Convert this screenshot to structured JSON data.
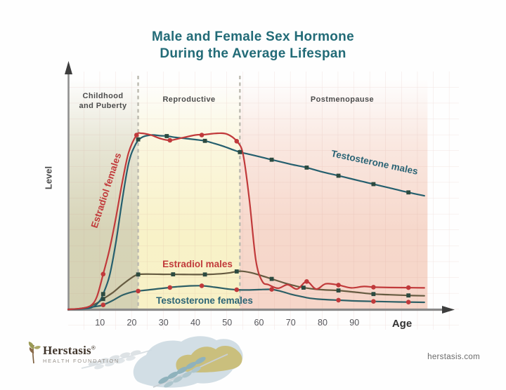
{
  "title": {
    "line1": "Male and Female Sex Hormone",
    "line2": "During the Average Lifespan"
  },
  "stages": {
    "childhood_line1": "Childhood",
    "childhood_line2": "and Puberty",
    "reproductive": "Reproductive",
    "postmenopause": "Postmenopause"
  },
  "axes": {
    "y_label": "Level",
    "x_label": "Age"
  },
  "branding": {
    "logo_name": "Herstasis",
    "logo_mark": "®",
    "logo_sub": "HEALTH FOUNDATION",
    "website": "herstasis.com"
  },
  "chart_data": {
    "type": "line",
    "title": "Male and Female Sex Hormone During the Average Lifespan",
    "xlabel": "Age",
    "ylabel": "Level",
    "x_ticks": [
      10,
      20,
      30,
      40,
      50,
      60,
      70,
      80,
      90
    ],
    "x_range": [
      0,
      113
    ],
    "y_range": [
      0,
      100
    ],
    "grid": "faint",
    "legend_position": "labels-on-lines",
    "stage_bands": [
      {
        "label": "Childhood and Puberty",
        "age_range": [
          0,
          22
        ],
        "color": "#d5d2b4"
      },
      {
        "label": "Reproductive",
        "age_range": [
          22,
          54
        ],
        "color": "#f8f1c6"
      },
      {
        "label": "Postmenopause",
        "age_range": [
          54,
          113
        ],
        "color": "#f6d6c9"
      }
    ],
    "series": [
      {
        "name": "Estradiol females",
        "color": "#c13a3b",
        "label_color": "#c13a3b",
        "marker": "circle",
        "marker_color": "#c0393b",
        "points": [
          [
            0,
            0
          ],
          [
            4,
            0.5
          ],
          [
            7,
            2
          ],
          [
            9,
            7
          ],
          [
            11,
            20
          ],
          [
            13,
            34
          ],
          [
            15,
            52
          ],
          [
            17,
            72
          ],
          [
            19,
            89
          ],
          [
            21.5,
            99
          ],
          [
            23,
            100
          ],
          [
            26,
            99
          ],
          [
            29,
            97
          ],
          [
            32,
            96
          ],
          [
            36,
            97.5
          ],
          [
            40,
            99
          ],
          [
            43,
            99.3
          ],
          [
            47,
            100
          ],
          [
            50,
            99.5
          ],
          [
            53,
            95.5
          ],
          [
            55,
            88
          ],
          [
            57,
            62
          ],
          [
            59,
            28
          ],
          [
            61,
            16
          ],
          [
            63,
            14
          ],
          [
            66,
            12
          ],
          [
            69,
            14
          ],
          [
            72,
            11.5
          ],
          [
            75,
            15.8
          ],
          [
            78,
            11.5
          ],
          [
            81,
            14.5
          ],
          [
            85,
            13.8
          ],
          [
            89,
            12.2
          ],
          [
            93,
            13
          ],
          [
            96,
            12.6
          ],
          [
            101,
            12.4
          ],
          [
            107,
            12.3
          ],
          [
            112,
            12.2
          ]
        ],
        "markers": [
          [
            11,
            20
          ],
          [
            21.5,
            99
          ],
          [
            32,
            96
          ],
          [
            42,
            99
          ],
          [
            53,
            95.5
          ],
          [
            75,
            15.8
          ],
          [
            85,
            13.8
          ],
          [
            96,
            12.6
          ],
          [
            107,
            12.3
          ]
        ]
      },
      {
        "name": "Testosterone males",
        "color": "#255f6e",
        "label_color": "#2b6475",
        "marker": "square",
        "marker_color": "#2c4a40",
        "points": [
          [
            0,
            0
          ],
          [
            5,
            0.3
          ],
          [
            8,
            1.5
          ],
          [
            10,
            5
          ],
          [
            11,
            8.7
          ],
          [
            13,
            19
          ],
          [
            15,
            38
          ],
          [
            17,
            62
          ],
          [
            19,
            83
          ],
          [
            21,
            93
          ],
          [
            23,
            97.5
          ],
          [
            26,
            99
          ],
          [
            29,
            98.6
          ],
          [
            31,
            98.4
          ],
          [
            34,
            97.6
          ],
          [
            37,
            97
          ],
          [
            40,
            96.4
          ],
          [
            43,
            95.7
          ],
          [
            46,
            94.2
          ],
          [
            49,
            92.5
          ],
          [
            52,
            90.5
          ],
          [
            54,
            89.3
          ],
          [
            58,
            87.6
          ],
          [
            64,
            85
          ],
          [
            70,
            82.4
          ],
          [
            75,
            80.5
          ],
          [
            80,
            78
          ],
          [
            85,
            75.9
          ],
          [
            90,
            73.7
          ],
          [
            96,
            71.1
          ],
          [
            101,
            69
          ],
          [
            107,
            66.4
          ],
          [
            112,
            64.5
          ]
        ],
        "markers": [
          [
            11,
            8.7
          ],
          [
            22,
            96.5
          ],
          [
            31,
            98.4
          ],
          [
            43,
            95.7
          ],
          [
            54,
            89.3
          ],
          [
            64,
            85
          ],
          [
            75,
            80.5
          ],
          [
            85,
            75.9
          ],
          [
            96,
            71.1
          ],
          [
            107,
            66.4
          ]
        ]
      },
      {
        "name": "Estradiol males",
        "color": "#665b41",
        "label_color": "#c13a3b",
        "marker": "square",
        "marker_color": "#2c4a40",
        "points": [
          [
            0,
            0
          ],
          [
            3,
            0.3
          ],
          [
            6,
            1.2
          ],
          [
            9,
            3.5
          ],
          [
            11,
            5.9
          ],
          [
            14,
            9.5
          ],
          [
            17,
            14
          ],
          [
            20,
            18
          ],
          [
            22,
            19.8
          ],
          [
            26,
            20
          ],
          [
            30,
            19.9
          ],
          [
            33,
            19.9
          ],
          [
            38,
            19.8
          ],
          [
            43,
            19.8
          ],
          [
            48,
            20.2
          ],
          [
            51,
            20.8
          ],
          [
            53,
            21.5
          ],
          [
            55,
            21.6
          ],
          [
            58,
            20.6
          ],
          [
            61,
            19
          ],
          [
            64,
            17.3
          ],
          [
            68,
            15
          ],
          [
            71,
            13.5
          ],
          [
            74,
            12.3
          ],
          [
            78,
            11.4
          ],
          [
            81,
            11
          ],
          [
            85,
            10.7
          ],
          [
            90,
            9.8
          ],
          [
            96,
            8.7
          ],
          [
            101,
            8.3
          ],
          [
            107,
            7.9
          ],
          [
            112,
            7.7
          ]
        ],
        "markers": [
          [
            11,
            5.9
          ],
          [
            22,
            19.8
          ],
          [
            33,
            19.9
          ],
          [
            43,
            19.8
          ],
          [
            53,
            21.5
          ],
          [
            64,
            17.3
          ],
          [
            74,
            12.3
          ],
          [
            85,
            10.7
          ],
          [
            96,
            8.7
          ],
          [
            107,
            7.9
          ]
        ]
      },
      {
        "name": "Testosterone females",
        "color": "#2d5f66",
        "label_color": "#2b6475",
        "marker": "circle",
        "marker_color": "#c0393b",
        "points": [
          [
            0,
            0
          ],
          [
            4,
            0.3
          ],
          [
            7,
            1.2
          ],
          [
            9,
            1.7
          ],
          [
            11,
            2.5
          ],
          [
            14,
            5
          ],
          [
            17,
            8
          ],
          [
            20,
            9.8
          ],
          [
            22,
            10.4
          ],
          [
            26,
            11.2
          ],
          [
            30,
            12
          ],
          [
            34,
            12.8
          ],
          [
            38,
            13.3
          ],
          [
            42,
            13.4
          ],
          [
            46,
            12.6
          ],
          [
            50,
            11.6
          ],
          [
            53,
            11.1
          ],
          [
            57,
            11
          ],
          [
            60,
            11.2
          ],
          [
            64,
            11.3
          ],
          [
            67,
            10.2
          ],
          [
            70,
            8.6
          ],
          [
            73,
            7.4
          ],
          [
            76,
            6.3
          ],
          [
            80,
            5.6
          ],
          [
            85,
            5.2
          ],
          [
            90,
            4.8
          ],
          [
            96,
            4.5
          ],
          [
            101,
            4.3
          ],
          [
            107,
            4.1
          ],
          [
            112,
            4.0
          ]
        ],
        "markers": [
          [
            11,
            2.5
          ],
          [
            22,
            10.4
          ],
          [
            32,
            12.4
          ],
          [
            42,
            13.4
          ],
          [
            53,
            11.1
          ],
          [
            64,
            11.3
          ],
          [
            85,
            5.2
          ],
          [
            96,
            4.5
          ],
          [
            107,
            4.1
          ]
        ]
      }
    ]
  }
}
